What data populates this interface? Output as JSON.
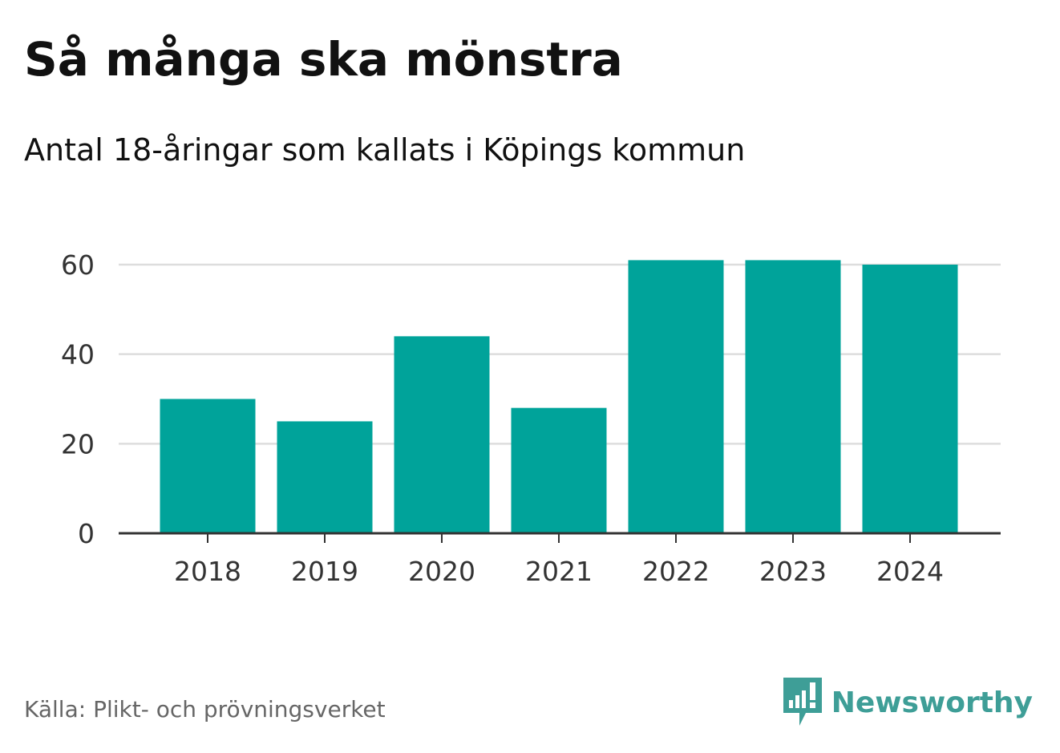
{
  "header": {
    "title": "Så många ska mönstra",
    "subtitle": "Antal 18-åringar som kallats i Köpings kommun"
  },
  "footer": {
    "source": "Källa: Plikt- och prövningsverket",
    "brand": "Newsworthy",
    "brand_icon": "newsworthy-logo-icon"
  },
  "colors": {
    "bar": "#00a39a",
    "grid": "#dddddd",
    "axis": "#333333",
    "brand": "#3e9e97"
  },
  "chart_data": {
    "type": "bar",
    "title": "Så många ska mönstra",
    "subtitle": "Antal 18-åringar som kallats i Köpings kommun",
    "categories": [
      "2018",
      "2019",
      "2020",
      "2021",
      "2022",
      "2023",
      "2024"
    ],
    "values": [
      30,
      25,
      44,
      28,
      61,
      61,
      60
    ],
    "xlabel": "",
    "ylabel": "",
    "ylim": [
      0,
      60
    ],
    "yticks": [
      0,
      20,
      40,
      60
    ],
    "grid": true,
    "legend": "none"
  }
}
